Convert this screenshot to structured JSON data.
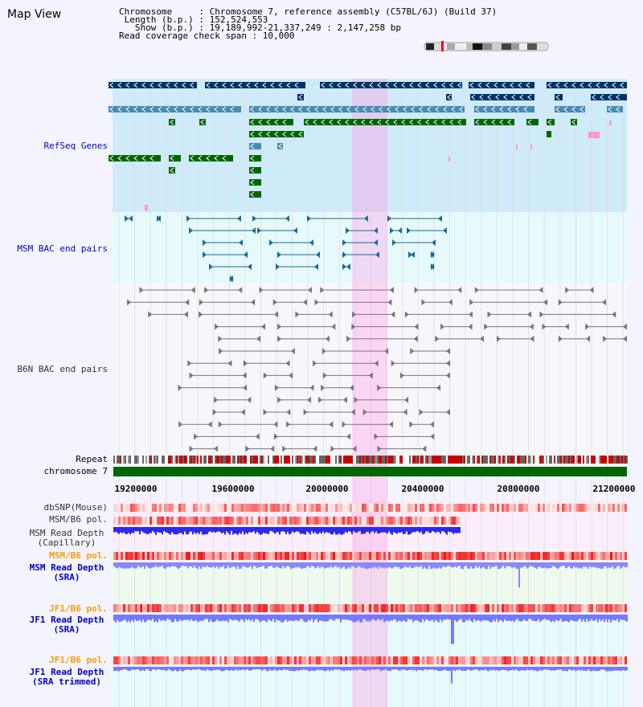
{
  "page": {
    "title": "Map View"
  },
  "header": {
    "chromosome": "Chromosome     : Chromosome 7, reference assembly (C57BL/6J) (Build 37)",
    "length": " Length (b.p.) : 152,524,553",
    "show": "   Show (b.p.) : 19,189,992-21,337,249 : 2,147,258 bp",
    "read_check": "Read coverage check span : 10,000"
  },
  "tracks": {
    "refseq": "RefSeq Genes",
    "msm_bac": "MSM BAC end pairs",
    "b6n_bac": "B6N BAC end pairs",
    "repeat": "Repeat",
    "chromosome": "chromosome 7",
    "dbsnp": "dbSNP(Mouse)",
    "msm_b6_pol_1": "MSM/B6 pol.",
    "msm_read_cap": "MSM Read Depth\n(Capillary)",
    "msm_b6_pol_2": "MSM/B6 pol.",
    "msm_read_sra": "MSM Read Depth\n(SRA)",
    "jf1_b6_pol_1": "JF1/B6 pol.",
    "jf1_read_sra": "JF1 Read Depth\n(SRA)",
    "jf1_b6_pol_2": "JF1/B6 pol.",
    "jf1_read_trim": "JF1 Read Depth\n(SRA trimmed)"
  },
  "axis": {
    "ticks": [
      "19200000",
      "19600000",
      "20000000",
      "20400000",
      "20800000",
      "21200000"
    ]
  },
  "colors": {
    "label_blue": "#0000cc",
    "label_orange": "#ff9900",
    "highlight": "#ff99e6",
    "gene_dark": "#003366",
    "gene_mid": "#4a8cb0",
    "gene_green": "#006600",
    "chromosome_green": "#006600",
    "depth_blue": "#3333ff"
  }
}
